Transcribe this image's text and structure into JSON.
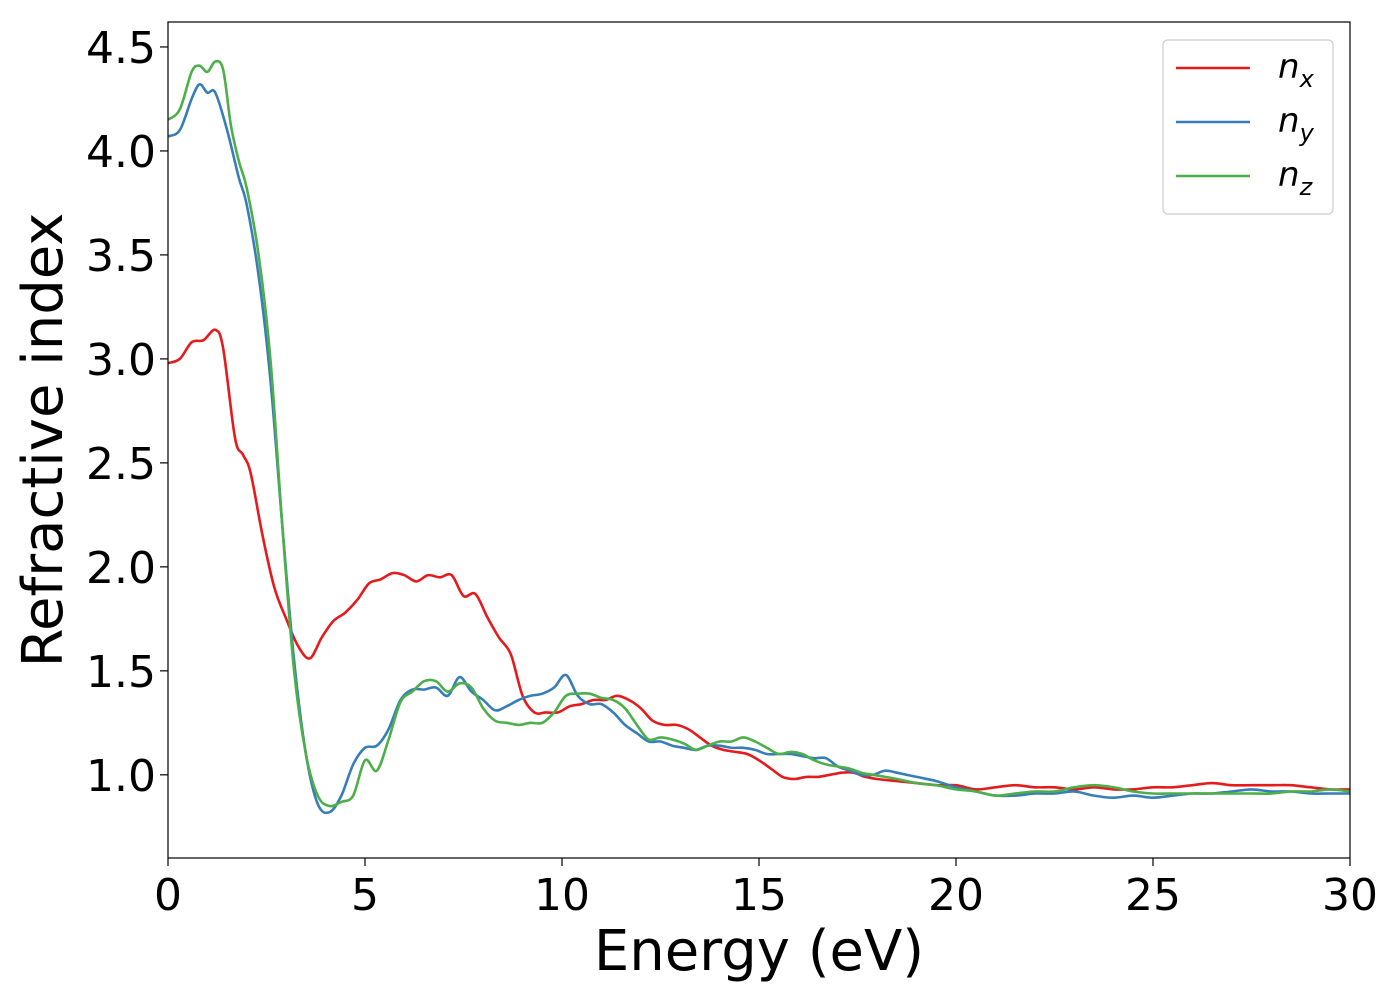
{
  "chart_data": {
    "type": "line",
    "xlabel": "Energy (eV)",
    "ylabel": "Refractive index",
    "xlim": [
      0,
      30
    ],
    "ylim": [
      0.6,
      4.62
    ],
    "xticks": [
      0,
      5,
      10,
      15,
      20,
      25,
      30
    ],
    "xtick_labels": [
      "0",
      "5",
      "10",
      "15",
      "20",
      "25",
      "30"
    ],
    "yticks": [
      1.0,
      1.5,
      2.0,
      2.5,
      3.0,
      3.5,
      4.0,
      4.5
    ],
    "ytick_labels": [
      "1.0",
      "1.5",
      "2.0",
      "2.5",
      "3.0",
      "3.5",
      "4.0",
      "4.5"
    ],
    "grid": false,
    "legend_position": "top-right",
    "series": [
      {
        "name": "n",
        "subscript": "x",
        "color": "#e41a1c",
        "x": [
          0,
          0.3,
          0.6,
          0.9,
          1.2,
          1.4,
          1.7,
          1.9,
          2.1,
          2.4,
          2.7,
          3.0,
          3.3,
          3.6,
          3.9,
          4.2,
          4.5,
          4.8,
          5.1,
          5.4,
          5.7,
          6.0,
          6.3,
          6.6,
          6.9,
          7.2,
          7.5,
          7.8,
          8.1,
          8.4,
          8.7,
          9.0,
          9.3,
          9.6,
          9.9,
          10.2,
          10.5,
          10.8,
          11.1,
          11.4,
          11.7,
          12.0,
          12.3,
          12.6,
          12.9,
          13.2,
          13.5,
          13.8,
          14.1,
          14.4,
          14.7,
          15.0,
          15.3,
          15.6,
          15.9,
          16.2,
          16.5,
          16.8,
          17.1,
          17.4,
          17.7,
          18.0,
          18.5,
          19.0,
          19.5,
          20.0,
          20.5,
          21.0,
          21.5,
          22.0,
          22.5,
          23.0,
          23.5,
          24.0,
          24.5,
          25.0,
          25.5,
          26.0,
          26.5,
          27.0,
          27.5,
          28.0,
          28.5,
          29.0,
          29.5,
          30.0
        ],
        "y": [
          2.98,
          3.0,
          3.08,
          3.09,
          3.14,
          3.05,
          2.62,
          2.54,
          2.45,
          2.15,
          1.9,
          1.75,
          1.62,
          1.56,
          1.66,
          1.74,
          1.78,
          1.84,
          1.92,
          1.94,
          1.97,
          1.96,
          1.93,
          1.96,
          1.95,
          1.96,
          1.86,
          1.87,
          1.76,
          1.66,
          1.58,
          1.38,
          1.3,
          1.3,
          1.3,
          1.33,
          1.34,
          1.36,
          1.36,
          1.38,
          1.36,
          1.32,
          1.26,
          1.24,
          1.24,
          1.22,
          1.18,
          1.14,
          1.12,
          1.11,
          1.1,
          1.07,
          1.03,
          0.99,
          0.98,
          0.99,
          0.99,
          1.0,
          1.01,
          1.01,
          0.99,
          0.98,
          0.97,
          0.96,
          0.95,
          0.95,
          0.93,
          0.94,
          0.95,
          0.94,
          0.94,
          0.93,
          0.94,
          0.93,
          0.93,
          0.94,
          0.94,
          0.95,
          0.96,
          0.95,
          0.95,
          0.95,
          0.95,
          0.94,
          0.93,
          0.93
        ]
      },
      {
        "name": "n",
        "subscript": "y",
        "color": "#377eb8",
        "x": [
          0,
          0.3,
          0.6,
          0.8,
          1.0,
          1.2,
          1.5,
          1.8,
          2.0,
          2.3,
          2.6,
          2.9,
          3.2,
          3.5,
          3.8,
          4.1,
          4.4,
          4.7,
          5.0,
          5.3,
          5.6,
          5.9,
          6.2,
          6.5,
          6.8,
          7.1,
          7.4,
          7.7,
          8.0,
          8.3,
          8.6,
          8.9,
          9.2,
          9.5,
          9.8,
          10.1,
          10.4,
          10.7,
          11.0,
          11.3,
          11.6,
          11.9,
          12.2,
          12.5,
          12.8,
          13.1,
          13.4,
          13.7,
          14.0,
          14.3,
          14.6,
          14.9,
          15.2,
          15.5,
          15.8,
          16.1,
          16.4,
          16.7,
          17.0,
          17.3,
          17.6,
          17.9,
          18.2,
          18.5,
          19.0,
          19.5,
          20.0,
          20.5,
          21.0,
          21.5,
          22.0,
          22.5,
          23.0,
          23.5,
          24.0,
          24.5,
          25.0,
          25.5,
          26.0,
          26.5,
          27.0,
          27.5,
          28.0,
          28.5,
          29.0,
          29.5,
          30.0
        ],
        "y": [
          4.07,
          4.1,
          4.25,
          4.32,
          4.28,
          4.28,
          4.1,
          3.87,
          3.74,
          3.4,
          2.9,
          2.2,
          1.55,
          1.1,
          0.86,
          0.82,
          0.9,
          1.05,
          1.13,
          1.14,
          1.22,
          1.36,
          1.41,
          1.41,
          1.42,
          1.38,
          1.47,
          1.4,
          1.36,
          1.31,
          1.33,
          1.36,
          1.38,
          1.39,
          1.42,
          1.48,
          1.38,
          1.34,
          1.34,
          1.3,
          1.24,
          1.2,
          1.16,
          1.16,
          1.14,
          1.13,
          1.12,
          1.14,
          1.14,
          1.13,
          1.13,
          1.12,
          1.1,
          1.1,
          1.1,
          1.09,
          1.08,
          1.08,
          1.04,
          1.02,
          1.0,
          1.0,
          1.02,
          1.01,
          0.99,
          0.97,
          0.94,
          0.92,
          0.9,
          0.9,
          0.91,
          0.91,
          0.92,
          0.9,
          0.89,
          0.9,
          0.89,
          0.9,
          0.91,
          0.91,
          0.92,
          0.93,
          0.92,
          0.92,
          0.91,
          0.91,
          0.91
        ]
      },
      {
        "name": "n",
        "subscript": "z",
        "color": "#4daf4a",
        "x": [
          0,
          0.3,
          0.6,
          0.8,
          1.0,
          1.2,
          1.4,
          1.6,
          1.8,
          2.0,
          2.3,
          2.6,
          2.9,
          3.2,
          3.5,
          3.8,
          4.1,
          4.4,
          4.7,
          5.0,
          5.3,
          5.6,
          5.9,
          6.2,
          6.5,
          6.8,
          7.1,
          7.4,
          7.7,
          8.0,
          8.3,
          8.6,
          8.9,
          9.2,
          9.5,
          9.8,
          10.1,
          10.4,
          10.7,
          11.0,
          11.3,
          11.6,
          11.9,
          12.2,
          12.5,
          12.8,
          13.1,
          13.4,
          13.7,
          14.0,
          14.3,
          14.6,
          14.9,
          15.2,
          15.5,
          15.8,
          16.1,
          16.4,
          16.7,
          17.0,
          17.3,
          17.6,
          17.9,
          18.2,
          18.5,
          19.0,
          19.5,
          20.0,
          20.5,
          21.0,
          21.5,
          22.0,
          22.5,
          23.0,
          23.5,
          24.0,
          24.5,
          25.0,
          25.5,
          26.0,
          26.5,
          27.0,
          27.5,
          28.0,
          28.5,
          29.0,
          29.5,
          30.0
        ],
        "y": [
          4.15,
          4.2,
          4.38,
          4.41,
          4.38,
          4.43,
          4.39,
          4.12,
          3.95,
          3.82,
          3.5,
          3.0,
          2.2,
          1.5,
          1.1,
          0.9,
          0.85,
          0.87,
          0.9,
          1.07,
          1.02,
          1.17,
          1.35,
          1.4,
          1.45,
          1.45,
          1.4,
          1.44,
          1.42,
          1.32,
          1.26,
          1.25,
          1.24,
          1.25,
          1.25,
          1.3,
          1.38,
          1.39,
          1.39,
          1.37,
          1.36,
          1.32,
          1.24,
          1.17,
          1.18,
          1.17,
          1.15,
          1.12,
          1.14,
          1.16,
          1.16,
          1.18,
          1.16,
          1.13,
          1.1,
          1.11,
          1.1,
          1.07,
          1.05,
          1.04,
          1.03,
          1.01,
          1.0,
          0.99,
          0.98,
          0.96,
          0.95,
          0.93,
          0.92,
          0.9,
          0.91,
          0.92,
          0.92,
          0.94,
          0.95,
          0.94,
          0.92,
          0.91,
          0.91,
          0.91,
          0.91,
          0.91,
          0.91,
          0.91,
          0.92,
          0.92,
          0.93,
          0.92
        ]
      }
    ]
  }
}
